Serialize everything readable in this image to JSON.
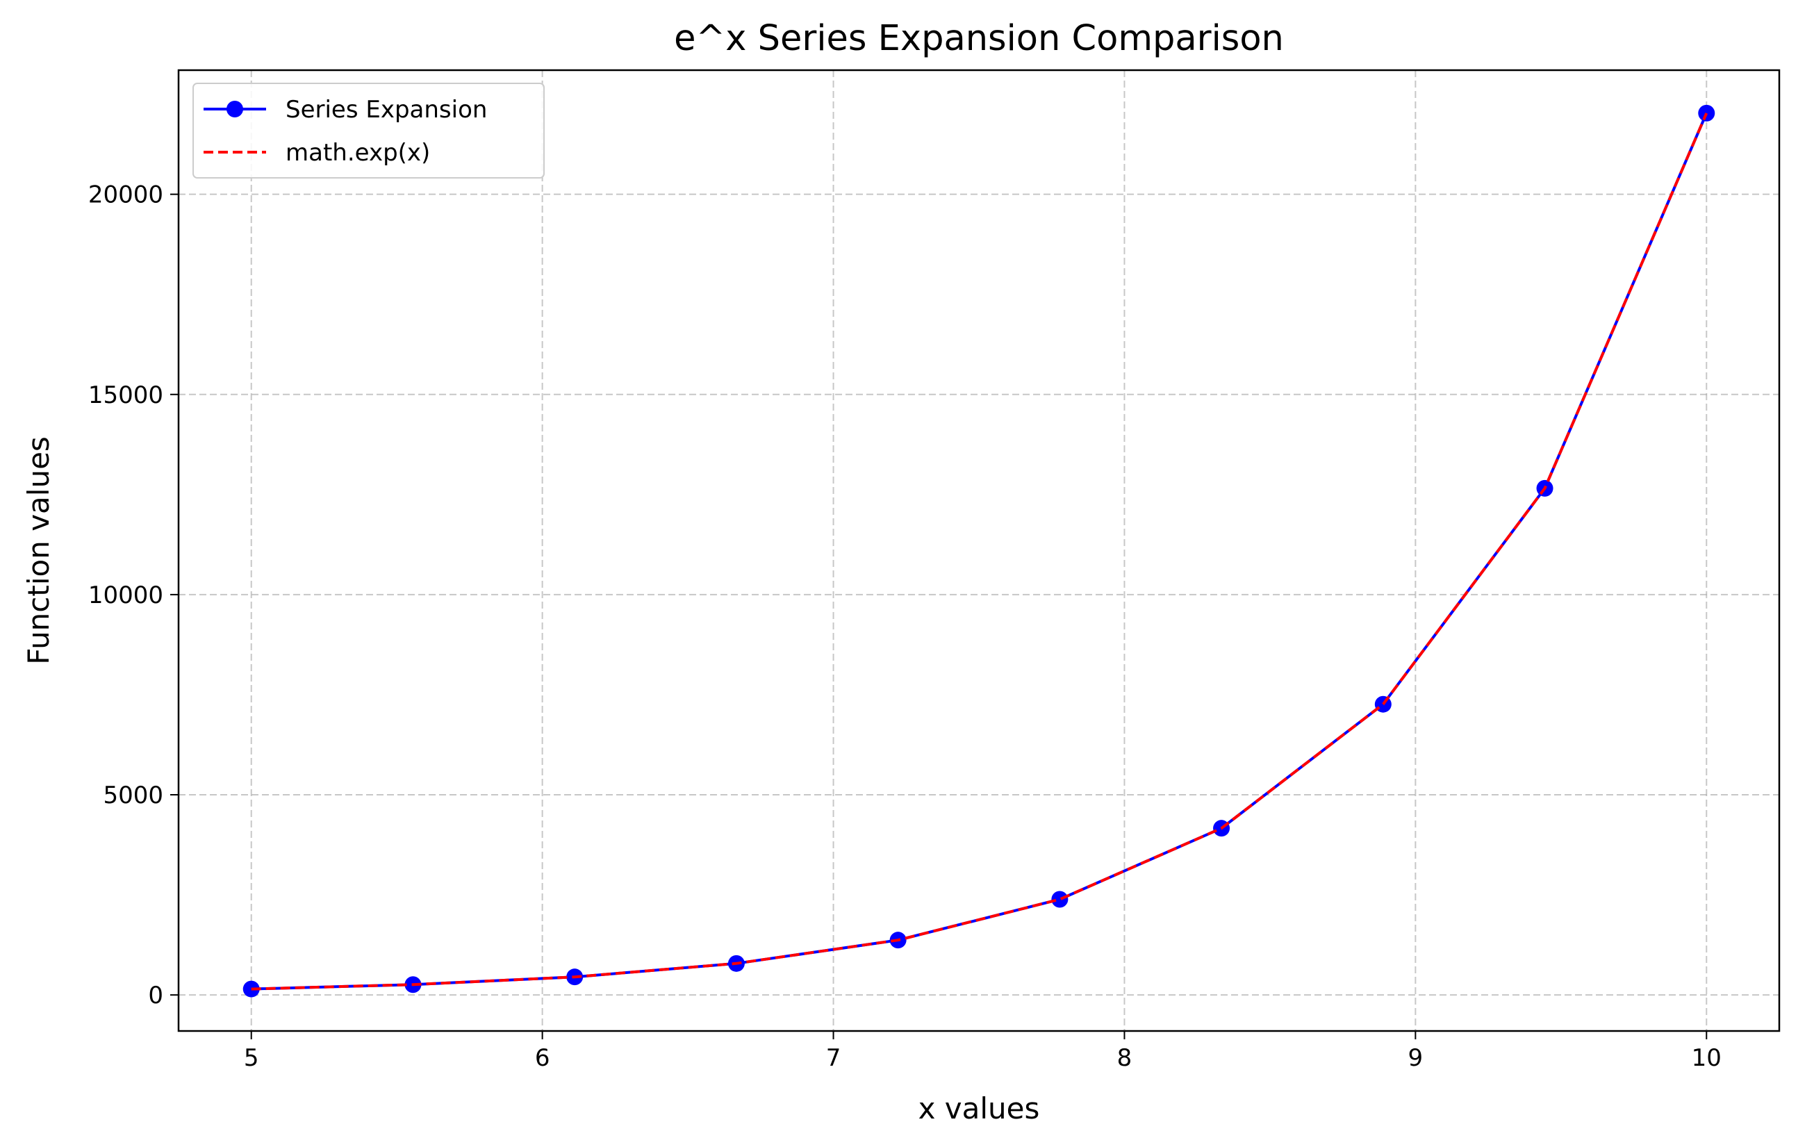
{
  "chart_data": {
    "type": "line",
    "title": "e^x Series Expansion Comparison",
    "xlabel": "x values",
    "ylabel": "Function values",
    "xlim": [
      4.75,
      10.25
    ],
    "ylim": [
      -900,
      23100
    ],
    "x_ticks": [
      5,
      6,
      7,
      8,
      9,
      10
    ],
    "y_ticks": [
      0,
      5000,
      10000,
      15000,
      20000
    ],
    "grid": true,
    "legend_position": "top-left",
    "x": [
      5,
      5.5556,
      6.1111,
      6.6667,
      7.2222,
      7.7778,
      8.3333,
      8.8889,
      9.4444,
      10
    ],
    "series": [
      {
        "name": "Series Expansion",
        "color": "#0000ff",
        "style": "solid",
        "marker": "circle",
        "values": [
          148.4,
          258.7,
          450.6,
          786.0,
          1370.3,
          2388.7,
          4164.0,
          7261.0,
          12655.0,
          22026.5
        ]
      },
      {
        "name": "math.exp(x)",
        "color": "#ff0000",
        "style": "dashed",
        "marker": "none",
        "values": [
          148.4,
          258.7,
          450.6,
          786.0,
          1370.3,
          2388.7,
          4164.0,
          7261.0,
          12655.0,
          22026.5
        ]
      }
    ]
  }
}
